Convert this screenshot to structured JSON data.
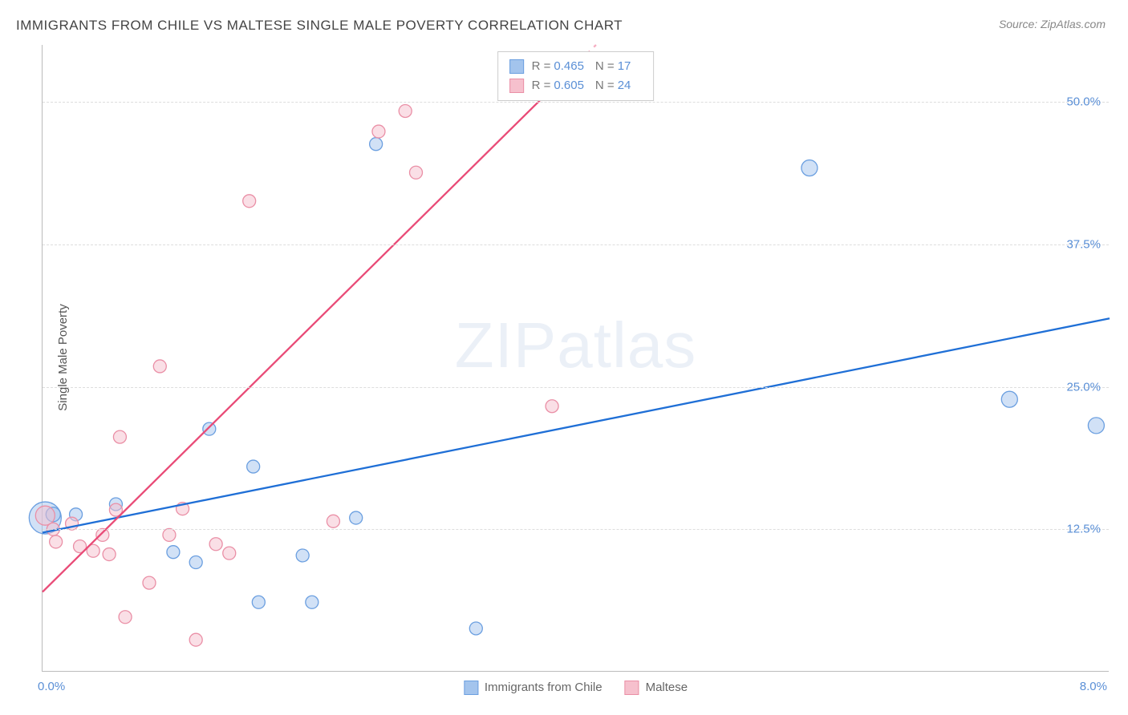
{
  "title": "IMMIGRANTS FROM CHILE VS MALTESE SINGLE MALE POVERTY CORRELATION CHART",
  "source": "Source: ZipAtlas.com",
  "ylabel": "Single Male Poverty",
  "watermark": "ZIPatlas",
  "chart": {
    "type": "scatter",
    "xlim": [
      0.0,
      8.0
    ],
    "ylim": [
      0.0,
      55.0
    ],
    "y_ticks": [
      12.5,
      25.0,
      37.5,
      50.0
    ],
    "y_tick_labels": [
      "12.5%",
      "25.0%",
      "37.5%",
      "50.0%"
    ],
    "x_tick_labels": {
      "left": "0.0%",
      "right": "8.0%"
    },
    "grid_color": "#dddddd",
    "background_color": "#ffffff",
    "axis_color": "#bbbbbb",
    "tick_label_color": "#5a8fd6",
    "series": [
      {
        "name": "Immigrants from Chile",
        "color": "#a3c4ed",
        "stroke": "#6b9fe0",
        "fill_opacity": 0.5,
        "R": 0.465,
        "N": 17,
        "trend": {
          "x1": 0.0,
          "y1": 12.2,
          "x2": 8.0,
          "y2": 31.0,
          "color": "#1f6fd6",
          "dash": "none",
          "width": 2.3
        },
        "points": [
          {
            "x": 0.02,
            "y": 13.5,
            "r": 20
          },
          {
            "x": 0.08,
            "y": 13.8,
            "r": 9
          },
          {
            "x": 0.25,
            "y": 13.8,
            "r": 8
          },
          {
            "x": 0.55,
            "y": 14.7,
            "r": 8
          },
          {
            "x": 0.98,
            "y": 10.5,
            "r": 8
          },
          {
            "x": 1.15,
            "y": 9.6,
            "r": 8
          },
          {
            "x": 1.25,
            "y": 21.3,
            "r": 8
          },
          {
            "x": 1.58,
            "y": 18.0,
            "r": 8
          },
          {
            "x": 1.62,
            "y": 6.1,
            "r": 8
          },
          {
            "x": 1.95,
            "y": 10.2,
            "r": 8
          },
          {
            "x": 2.02,
            "y": 6.1,
            "r": 8
          },
          {
            "x": 2.35,
            "y": 13.5,
            "r": 8
          },
          {
            "x": 2.5,
            "y": 46.3,
            "r": 8
          },
          {
            "x": 3.25,
            "y": 3.8,
            "r": 8
          },
          {
            "x": 5.75,
            "y": 44.2,
            "r": 10
          },
          {
            "x": 7.25,
            "y": 23.9,
            "r": 10
          },
          {
            "x": 7.9,
            "y": 21.6,
            "r": 10
          }
        ]
      },
      {
        "name": "Maltese",
        "color": "#f6c0cd",
        "stroke": "#ea8fa6",
        "fill_opacity": 0.5,
        "R": 0.605,
        "N": 24,
        "trend": {
          "x1": 0.0,
          "y1": 7.0,
          "x2": 4.15,
          "y2": 55.0,
          "color": "#e94b77",
          "dash_segment": 3.8,
          "width": 2.3
        },
        "points": [
          {
            "x": 0.02,
            "y": 13.7,
            "r": 12
          },
          {
            "x": 0.08,
            "y": 12.5,
            "r": 8
          },
          {
            "x": 0.1,
            "y": 11.4,
            "r": 8
          },
          {
            "x": 0.22,
            "y": 13.0,
            "r": 8
          },
          {
            "x": 0.28,
            "y": 11.0,
            "r": 8
          },
          {
            "x": 0.38,
            "y": 10.6,
            "r": 8
          },
          {
            "x": 0.45,
            "y": 12.0,
            "r": 8
          },
          {
            "x": 0.5,
            "y": 10.3,
            "r": 8
          },
          {
            "x": 0.55,
            "y": 14.2,
            "r": 8
          },
          {
            "x": 0.62,
            "y": 4.8,
            "r": 8
          },
          {
            "x": 0.58,
            "y": 20.6,
            "r": 8
          },
          {
            "x": 0.8,
            "y": 7.8,
            "r": 8
          },
          {
            "x": 0.88,
            "y": 26.8,
            "r": 8
          },
          {
            "x": 0.95,
            "y": 12.0,
            "r": 8
          },
          {
            "x": 1.05,
            "y": 14.3,
            "r": 8
          },
          {
            "x": 1.15,
            "y": 2.8,
            "r": 8
          },
          {
            "x": 1.3,
            "y": 11.2,
            "r": 8
          },
          {
            "x": 1.4,
            "y": 10.4,
            "r": 8
          },
          {
            "x": 1.55,
            "y": 41.3,
            "r": 8
          },
          {
            "x": 2.18,
            "y": 13.2,
            "r": 8
          },
          {
            "x": 2.52,
            "y": 47.4,
            "r": 8
          },
          {
            "x": 2.72,
            "y": 49.2,
            "r": 8
          },
          {
            "x": 2.8,
            "y": 43.8,
            "r": 8
          },
          {
            "x": 3.82,
            "y": 23.3,
            "r": 8
          }
        ]
      }
    ]
  },
  "legend_bottom": [
    {
      "label": "Immigrants from Chile",
      "fill": "#a3c4ed",
      "stroke": "#6b9fe0"
    },
    {
      "label": "Maltese",
      "fill": "#f6c0cd",
      "stroke": "#ea8fa6"
    }
  ]
}
